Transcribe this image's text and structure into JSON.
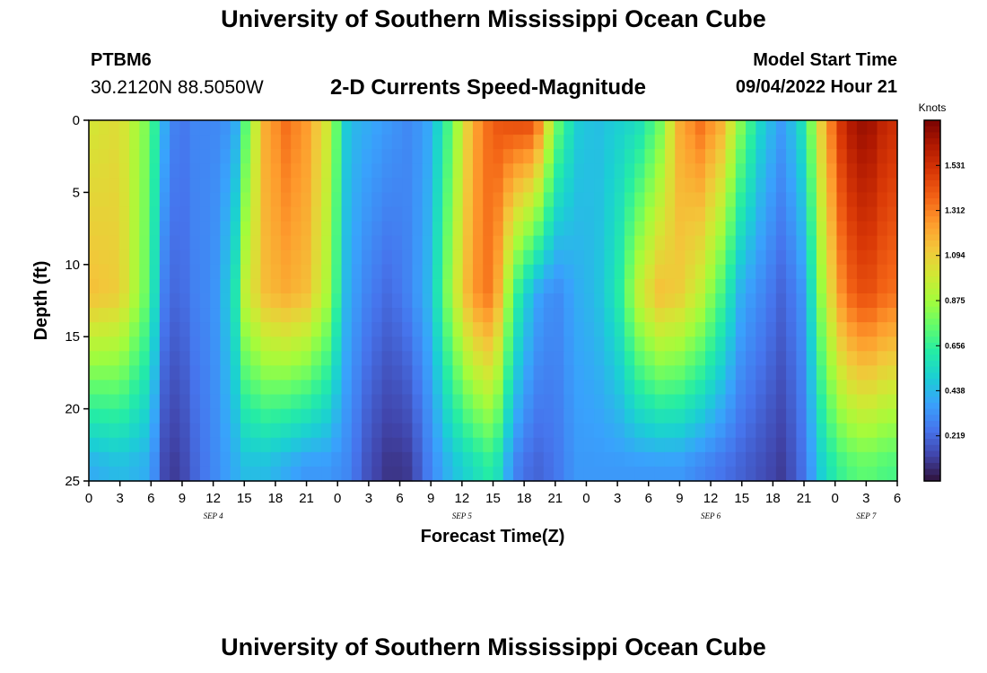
{
  "header": {
    "title": "University of Southern Mississippi Ocean Cube",
    "station_id": "PTBM6",
    "station_coords": "30.2120N  88.5050W",
    "subtitle": "2-D Currents Speed-Magnitude",
    "model_start_label": "Model Start Time",
    "model_start_value": "09/04/2022 Hour 21"
  },
  "footer": {
    "title": "University of Southern Mississippi Ocean Cube"
  },
  "chart_data": {
    "type": "heatmap",
    "title": "2-D Currents Speed-Magnitude",
    "xlabel": "Forecast Time(Z)",
    "ylabel": "Depth (ft)",
    "x_hours_range": [
      0,
      78
    ],
    "x_start_hour_of_day": 0,
    "x_tick_step_hours": 3,
    "x_tick_labels": [
      "0",
      "3",
      "6",
      "9",
      "12",
      "15",
      "18",
      "21",
      "0",
      "3",
      "6",
      "9",
      "12",
      "15",
      "18",
      "21",
      "0",
      "3",
      "6",
      "9",
      "12",
      "15",
      "18",
      "21",
      "0",
      "3",
      "6"
    ],
    "day_labels": [
      {
        "label": "SEP 4",
        "hour": 12
      },
      {
        "label": "SEP 5",
        "hour": 36
      },
      {
        "label": "SEP 6",
        "hour": 60
      },
      {
        "label": "SEP 7",
        "hour": 75
      }
    ],
    "y_ticks": [
      0,
      5,
      10,
      15,
      20,
      25
    ],
    "ylim": [
      0,
      25
    ],
    "y_inverted": true,
    "colorbar": {
      "label": "Knots",
      "ticks": [
        "1.531",
        "1.312",
        "1.094",
        "0.875",
        "0.656",
        "0.438",
        "0.219"
      ],
      "tick_values": [
        1.531,
        1.312,
        1.094,
        0.875,
        0.656,
        0.438,
        0.219
      ],
      "range": [
        0,
        1.75
      ],
      "colormap": [
        "#30123b",
        "#4145ab",
        "#4675ed",
        "#39a2fc",
        "#1bcfd4",
        "#24eca6",
        "#61fc6c",
        "#a4fc3b",
        "#d1e834",
        "#f3c63a",
        "#fe9b2d",
        "#f36315",
        "#d93806",
        "#b11901",
        "#7a0402"
      ]
    },
    "grid": {
      "columns": 80,
      "rows": 25
    },
    "speed_profile_knots": {
      "description": "current speed by forecast hour (columns) and depth in ft (rows)",
      "hours": [
        0,
        3,
        6,
        7,
        8,
        9,
        10,
        12,
        14,
        15,
        17,
        19,
        21,
        23,
        25,
        27,
        29,
        31,
        33,
        35,
        37,
        39,
        41,
        43,
        45,
        47,
        49,
        51,
        53,
        55,
        57,
        59,
        61,
        63,
        65,
        67,
        69,
        71,
        73,
        75,
        77
      ],
      "depth_0_ft": [
        1.0,
        1.05,
        0.75,
        0.45,
        0.3,
        0.25,
        0.3,
        0.3,
        0.35,
        0.7,
        1.2,
        1.35,
        1.25,
        1.0,
        0.45,
        0.4,
        0.35,
        0.3,
        0.4,
        0.75,
        1.2,
        1.4,
        1.45,
        1.45,
        0.8,
        0.5,
        0.45,
        0.5,
        0.55,
        0.75,
        1.2,
        1.35,
        1.2,
        0.8,
        0.5,
        0.35,
        0.6,
        1.2,
        1.6,
        1.7,
        1.55
      ],
      "depth_12_ft": [
        1.15,
        1.1,
        0.7,
        0.3,
        0.22,
        0.22,
        0.28,
        0.32,
        0.55,
        0.95,
        1.15,
        1.2,
        1.15,
        0.9,
        0.4,
        0.28,
        0.22,
        0.3,
        0.45,
        0.9,
        1.25,
        1.35,
        0.7,
        0.4,
        0.3,
        0.4,
        0.45,
        0.6,
        0.95,
        1.15,
        1.1,
        0.95,
        0.7,
        0.4,
        0.3,
        0.2,
        0.35,
        0.95,
        1.35,
        1.45,
        1.35
      ],
      "depth_24_ft": [
        0.4,
        0.45,
        0.4,
        0.15,
        0.1,
        0.12,
        0.2,
        0.3,
        0.4,
        0.45,
        0.45,
        0.4,
        0.35,
        0.35,
        0.3,
        0.15,
        0.08,
        0.1,
        0.3,
        0.45,
        0.55,
        0.65,
        0.3,
        0.2,
        0.25,
        0.35,
        0.35,
        0.35,
        0.35,
        0.35,
        0.35,
        0.3,
        0.25,
        0.2,
        0.15,
        0.1,
        0.25,
        0.55,
        0.7,
        0.75,
        0.7
      ]
    }
  }
}
